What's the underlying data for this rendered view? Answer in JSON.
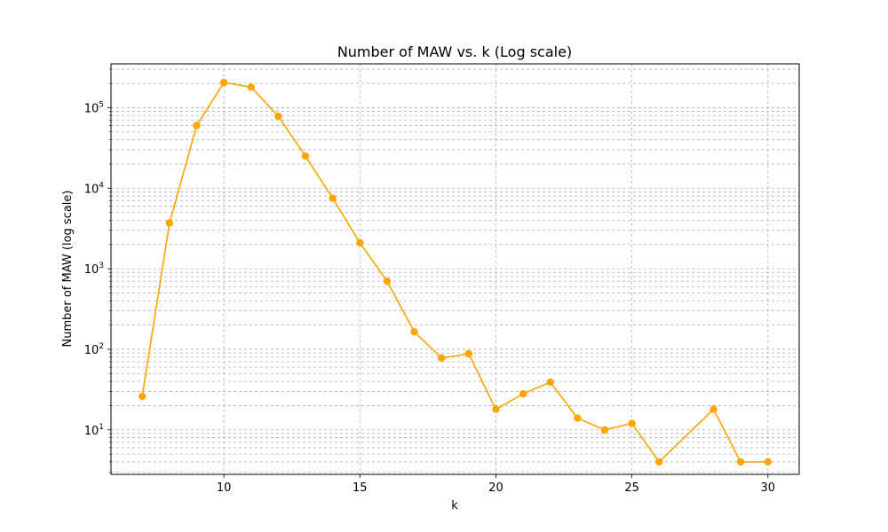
{
  "chart_data": {
    "type": "line",
    "title": "Number of MAW vs. k (Log scale)",
    "xlabel": "k",
    "ylabel": "Number of MAW (log scale)",
    "y_scale": "log",
    "xlim": [
      5.85,
      31.15
    ],
    "ylim": [
      2.8,
      350000
    ],
    "x_ticks": [
      10,
      15,
      20,
      25,
      30
    ],
    "y_ticks": [
      {
        "value": 10,
        "base": "10",
        "exp": "1"
      },
      {
        "value": 100,
        "base": "10",
        "exp": "2"
      },
      {
        "value": 1000,
        "base": "10",
        "exp": "3"
      },
      {
        "value": 10000,
        "base": "10",
        "exp": "4"
      },
      {
        "value": 100000,
        "base": "10",
        "exp": "5"
      }
    ],
    "grid": true,
    "grid_minor": true,
    "series": [
      {
        "color": "#FFA500",
        "marker": "circle",
        "x": [
          7,
          8,
          9,
          10,
          11,
          12,
          13,
          14,
          15,
          16,
          17,
          18,
          19,
          20,
          21,
          22,
          23,
          24,
          25,
          26,
          28,
          29,
          30
        ],
        "y": [
          26,
          3700,
          60000,
          205000,
          180000,
          78000,
          25000,
          7500,
          2100,
          700,
          165,
          78,
          88,
          18,
          28,
          39,
          14,
          10,
          12,
          4,
          18,
          4,
          4
        ]
      }
    ]
  }
}
